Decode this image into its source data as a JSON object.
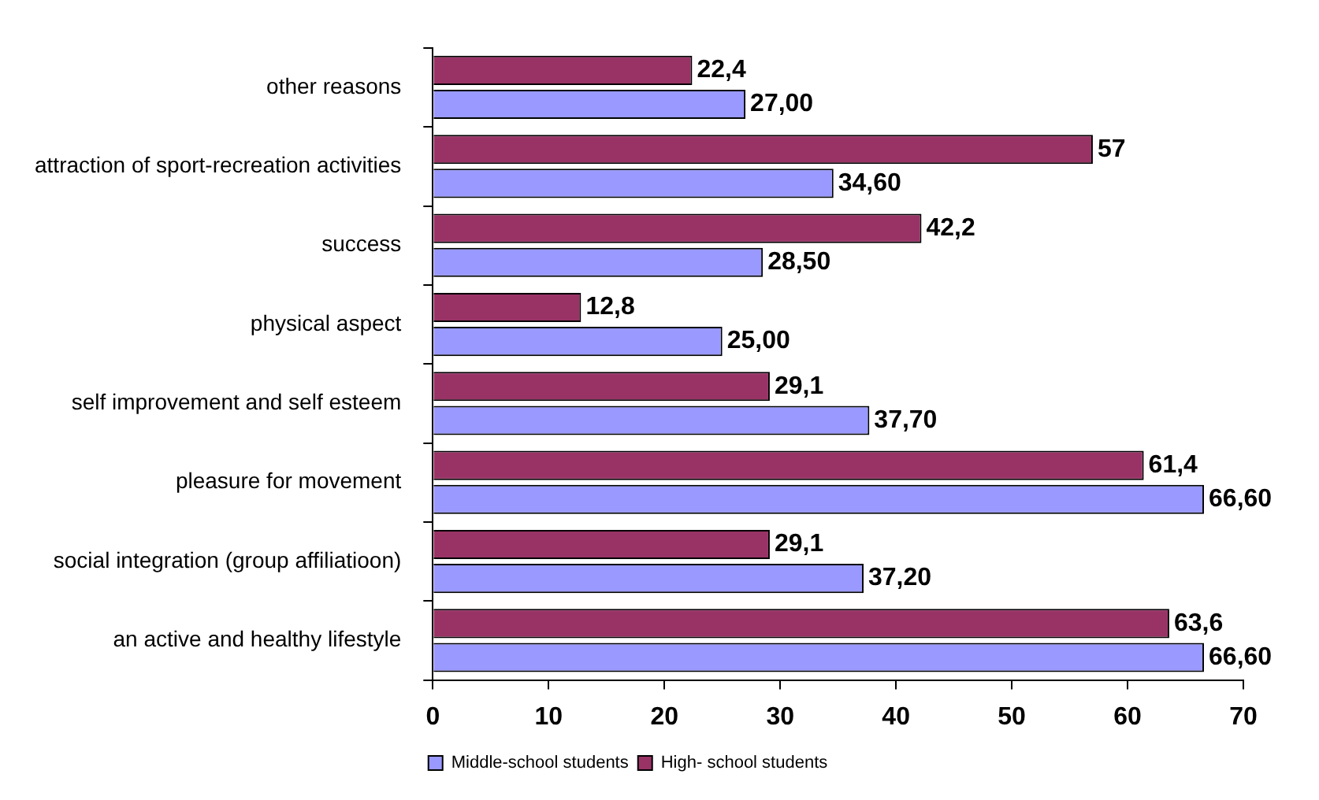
{
  "chart_data": {
    "type": "bar",
    "orientation": "horizontal",
    "categories": [
      "other reasons",
      "attraction of sport-recreation activities",
      "success",
      "physical aspect",
      "self improvement and self esteem",
      "pleasure for movement",
      "social integration (group affiliatioon)",
      "an active and healthy lifestyle"
    ],
    "series": [
      {
        "name": "Middle-school students",
        "color": "#9999ff",
        "values": [
          27,
          34.6,
          28.5,
          25,
          37.7,
          66.6,
          37.2,
          66.6
        ],
        "value_labels": [
          "27,00",
          "34,60",
          "28,50",
          "25,00",
          "37,70",
          "66,60",
          "37,20",
          "66,60"
        ]
      },
      {
        "name": "High- school students",
        "color": "#993366",
        "values": [
          22.4,
          57,
          42.2,
          12.8,
          29.1,
          61.4,
          29.1,
          63.6
        ],
        "value_labels": [
          "22,4",
          "57",
          "42,2",
          "12,8",
          "29,1",
          "61,4",
          "29,1",
          "63,6"
        ]
      }
    ],
    "xlim": [
      0,
      70
    ],
    "xticks": [
      0,
      10,
      20,
      30,
      40,
      50,
      60,
      70
    ],
    "grid": false,
    "legend": "bottom"
  }
}
